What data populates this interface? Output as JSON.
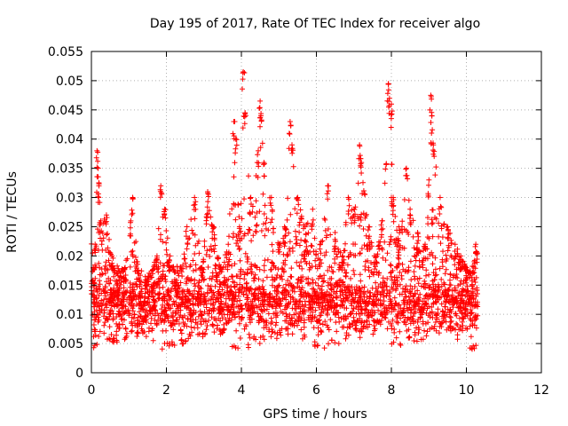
{
  "chart_data": {
    "type": "scatter",
    "title": "Day 195 of 2017, Rate Of TEC Index for receiver algo",
    "xlabel": "GPS time / hours",
    "ylabel": "ROTI / TECUs",
    "xlim": [
      0,
      12
    ],
    "ylim": [
      0,
      0.055
    ],
    "xticks": [
      "0",
      "2",
      "4",
      "6",
      "8",
      "10",
      "12"
    ],
    "yticks": [
      "0",
      "0.005",
      "0.01",
      "0.015",
      "0.02",
      "0.025",
      "0.03",
      "0.035",
      "0.04",
      "0.045",
      "0.05",
      "0.055"
    ],
    "grid": true,
    "marker": "+",
    "color": "#ff0000",
    "series": [
      {
        "points": [
          [
            0.05,
            0.018
          ],
          [
            0.1,
            0.022
          ],
          [
            0.15,
            0.038
          ],
          [
            0.18,
            0.035
          ],
          [
            0.2,
            0.032
          ],
          [
            0.25,
            0.026
          ],
          [
            0.4,
            0.027
          ],
          [
            0.55,
            0.02
          ],
          [
            0.7,
            0.015
          ],
          [
            0.9,
            0.018
          ],
          [
            1.05,
            0.026
          ],
          [
            1.1,
            0.03
          ],
          [
            1.3,
            0.013
          ],
          [
            1.5,
            0.016
          ],
          [
            1.75,
            0.02
          ],
          [
            1.85,
            0.032
          ],
          [
            1.95,
            0.028
          ],
          [
            2.1,
            0.02
          ],
          [
            2.3,
            0.015
          ],
          [
            2.55,
            0.025
          ],
          [
            2.75,
            0.03
          ],
          [
            2.95,
            0.018
          ],
          [
            3.1,
            0.031
          ],
          [
            3.25,
            0.025
          ],
          [
            3.45,
            0.018
          ],
          [
            3.65,
            0.022
          ],
          [
            3.8,
            0.043
          ],
          [
            3.85,
            0.04
          ],
          [
            3.95,
            0.025
          ],
          [
            4.05,
            0.0515
          ],
          [
            4.1,
            0.0445
          ],
          [
            4.25,
            0.03
          ],
          [
            4.45,
            0.038
          ],
          [
            4.5,
            0.0465
          ],
          [
            4.52,
            0.044
          ],
          [
            4.6,
            0.036
          ],
          [
            4.8,
            0.03
          ],
          [
            5.0,
            0.022
          ],
          [
            5.15,
            0.025
          ],
          [
            5.3,
            0.043
          ],
          [
            5.35,
            0.039
          ],
          [
            5.5,
            0.03
          ],
          [
            5.7,
            0.025
          ],
          [
            5.9,
            0.028
          ],
          [
            6.1,
            0.022
          ],
          [
            6.3,
            0.032
          ],
          [
            6.5,
            0.024
          ],
          [
            6.7,
            0.02
          ],
          [
            6.85,
            0.03
          ],
          [
            7.0,
            0.028
          ],
          [
            7.15,
            0.039
          ],
          [
            7.2,
            0.036
          ],
          [
            7.4,
            0.025
          ],
          [
            7.6,
            0.02
          ],
          [
            7.75,
            0.026
          ],
          [
            7.92,
            0.0495
          ],
          [
            7.95,
            0.047
          ],
          [
            8.0,
            0.046
          ],
          [
            8.05,
            0.03
          ],
          [
            8.2,
            0.025
          ],
          [
            8.4,
            0.035
          ],
          [
            8.5,
            0.028
          ],
          [
            8.7,
            0.024
          ],
          [
            8.9,
            0.022
          ],
          [
            9.0,
            0.033
          ],
          [
            9.05,
            0.0475
          ],
          [
            9.08,
            0.044
          ],
          [
            9.12,
            0.039
          ],
          [
            9.3,
            0.03
          ],
          [
            9.5,
            0.025
          ],
          [
            9.7,
            0.022
          ],
          [
            9.85,
            0.02
          ],
          [
            10.0,
            0.018
          ],
          [
            10.15,
            0.015
          ],
          [
            10.25,
            0.022
          ]
        ],
        "band": {
          "x_range": [
            0,
            10.3
          ],
          "typical_min": 0.004,
          "typical_max": 0.025,
          "dense_center": 0.011
        }
      }
    ]
  }
}
